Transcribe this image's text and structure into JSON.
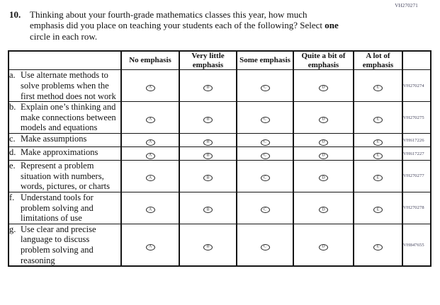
{
  "page": {
    "form_code": "VH270271"
  },
  "question": {
    "number": "10.",
    "line1": "Thinking about your fourth-grade mathematics classes this year, how much",
    "line2_pre": "emphasis did you place on teaching your students each of the following? Select ",
    "line2_bold": "one",
    "line3": "circle in each row."
  },
  "table": {
    "columns": [
      {
        "label": "No emphasis",
        "letter": "A"
      },
      {
        "label": "Very little emphasis",
        "letter": "B"
      },
      {
        "label": "Some emphasis",
        "letter": "C"
      },
      {
        "label": "Quite a bit of emphasis",
        "letter": "D"
      },
      {
        "label": "A lot of emphasis",
        "letter": "E"
      }
    ],
    "rows": [
      {
        "letter": "a.",
        "text": "Use alternate methods to solve problems when the first method does not work",
        "code": "VH270274"
      },
      {
        "letter": "b.",
        "text": "Explain one’s thinking and make connections between models and equations",
        "code": "VH270275"
      },
      {
        "letter": "c.",
        "text": "Make assumptions",
        "code": "VH617226"
      },
      {
        "letter": "d.",
        "text": "Make approximations",
        "code": "VH617227"
      },
      {
        "letter": "e.",
        "text": "Represent a problem situation with numbers, words, pictures, or charts",
        "code": "VH270277"
      },
      {
        "letter": "f.",
        "text": "Understand tools for problem solving and limitations of use",
        "code": "VH270278"
      },
      {
        "letter": "g.",
        "text": "Use clear and precise language to discuss problem solving and reasoning",
        "code": "VH847655"
      }
    ]
  }
}
